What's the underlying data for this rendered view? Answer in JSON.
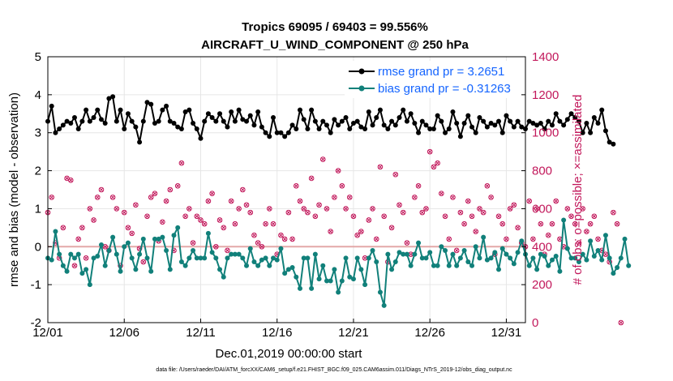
{
  "chart_data": {
    "type": "line",
    "title_line1": "Tropics 69095 / 69403 = 99.556%",
    "title_line2": "AIRCRAFT_U_WIND_COMPONENT @ 250 hPa",
    "xlabel": "Dec.01,2019 00:00:00 start",
    "ylabel_left": "rmse and bias (model - observation)",
    "ylabel_right": "# of obs: o=possible; ×=assimilated",
    "footer": "data file: /Users/raeder/DAI/ATM_forcXX/CAM6_setup/f.e21.FHIST_BGC.f09_025.CAM6assim.011/Diags_NTrS_2019-12/obs_diag_output.nc",
    "x_tick_labels": [
      "12/01",
      "12/06",
      "12/11",
      "12/16",
      "12/21",
      "12/26",
      "12/31"
    ],
    "x_tick_days": [
      0,
      5,
      10,
      15,
      20,
      25,
      30
    ],
    "xlim_days": [
      0,
      31.25
    ],
    "ylim_left": [
      -2,
      5
    ],
    "y_ticks_left": [
      "-2",
      "-1",
      "0",
      "1",
      "2",
      "3",
      "4",
      "5"
    ],
    "ylim_right": [
      0,
      1400
    ],
    "y_ticks_right": [
      "0",
      "200",
      "400",
      "600",
      "800",
      "1000",
      "1200",
      "1400"
    ],
    "points_per_day": 4,
    "series": [
      {
        "name": "rmse grand pr = 3.2651",
        "color": "#000000",
        "values": [
          3.3,
          3.7,
          3.0,
          3.1,
          3.2,
          3.3,
          3.25,
          3.4,
          3.1,
          3.3,
          3.6,
          3.3,
          3.4,
          3.6,
          3.35,
          3.25,
          3.9,
          3.95,
          3.3,
          3.6,
          3.1,
          3.5,
          3.3,
          3.15,
          2.75,
          3.3,
          3.8,
          3.75,
          3.25,
          3.3,
          3.6,
          3.7,
          3.3,
          3.25,
          3.15,
          3.1,
          3.55,
          3.6,
          3.25,
          3.1,
          2.85,
          3.3,
          3.5,
          3.4,
          3.3,
          3.5,
          3.3,
          3.15,
          3.55,
          3.3,
          3.6,
          3.35,
          3.3,
          3.45,
          3.2,
          3.55,
          3.15,
          3.0,
          2.9,
          3.4,
          3.0,
          3.0,
          2.9,
          3.0,
          3.2,
          3.1,
          3.6,
          3.35,
          3.1,
          3.6,
          3.3,
          3.1,
          3.3,
          3.2,
          3.0,
          3.35,
          3.2,
          3.3,
          3.4,
          3.1,
          3.25,
          3.3,
          3.15,
          3.1,
          3.55,
          3.2,
          3.4,
          3.6,
          3.2,
          3.1,
          3.3,
          3.2,
          3.4,
          3.6,
          3.3,
          3.5,
          3.25,
          3.0,
          3.3,
          3.2,
          3.1,
          3.1,
          3.45,
          3.3,
          3.0,
          3.1,
          3.55,
          3.25,
          2.9,
          3.25,
          3.45,
          3.15,
          3.0,
          3.4,
          3.3,
          3.15,
          3.25,
          3.2,
          3.3,
          3.0,
          3.45,
          3.3,
          3.15,
          3.3,
          3.15,
          3.1,
          3.3,
          3.25,
          3.2,
          3.25,
          3.1,
          3.3,
          3.2,
          3.5,
          3.3,
          3.2,
          3.35,
          3.5,
          3.4,
          3.3,
          3.0,
          3.25,
          3.0,
          3.4,
          3.25,
          3.6,
          3.05,
          2.75,
          2.7
        ]
      },
      {
        "name": "bias grand pr = -0.31263",
        "color": "#11807a",
        "values": [
          -0.3,
          -0.35,
          0.4,
          -0.2,
          -0.5,
          -0.65,
          -0.2,
          -0.3,
          -0.2,
          -0.7,
          -0.6,
          -1.0,
          -0.3,
          -0.25,
          0.05,
          -0.5,
          -0.1,
          0.25,
          -0.2,
          -0.65,
          0.0,
          0.1,
          -0.3,
          -0.6,
          -0.2,
          0.2,
          -0.3,
          -0.65,
          0.2,
          0.2,
          0.25,
          -0.1,
          -0.6,
          0.3,
          0.5,
          -0.4,
          -0.5,
          -0.3,
          -0.1,
          -0.3,
          -0.3,
          -0.3,
          0.35,
          -0.15,
          -0.3,
          -0.6,
          -0.8,
          -0.3,
          -0.2,
          -0.2,
          -0.2,
          -0.3,
          -0.5,
          -0.05,
          -0.4,
          -0.5,
          -0.35,
          -0.3,
          -0.5,
          -0.3,
          -0.35,
          -0.05,
          -0.7,
          -0.6,
          -0.55,
          -0.8,
          -1.1,
          -0.3,
          -0.3,
          -1.1,
          -0.2,
          -0.85,
          -0.5,
          -0.9,
          -0.9,
          -0.6,
          -1.2,
          -0.9,
          -0.3,
          -0.8,
          -0.85,
          -0.3,
          -0.6,
          -1.0,
          -0.3,
          -0.1,
          -0.4,
          -1.2,
          -1.55,
          -0.2,
          -0.6,
          -0.4,
          -0.15,
          -0.2,
          -0.2,
          -0.5,
          -0.2,
          0.1,
          -0.3,
          -0.3,
          -0.15,
          -0.5,
          -0.5,
          0.0,
          -0.1,
          -0.5,
          -0.2,
          -0.5,
          -0.3,
          -0.1,
          -0.4,
          -0.5,
          0.0,
          -0.3,
          0.25,
          -0.35,
          -0.3,
          -0.15,
          -0.6,
          -0.05,
          -0.2,
          -0.3,
          -0.45,
          -0.15,
          0.15,
          -0.2,
          -0.5,
          -0.3,
          -0.6,
          -0.2,
          -0.25,
          -0.5,
          -0.35,
          -0.25,
          -0.65,
          0.7,
          -0.05,
          -0.3,
          -0.3,
          -0.4,
          -0.2,
          -0.35,
          0.15,
          -0.25,
          -0.1,
          -0.35,
          0.3,
          -0.3,
          -0.7,
          -0.55,
          -0.3,
          0.2,
          -0.5
        ]
      },
      {
        "name": "obs possible (right axis)",
        "color": "#c2185b",
        "values": [
          580,
          660,
          420,
          340,
          500,
          760,
          750,
          300,
          440,
          500,
          340,
          600,
          540,
          660,
          700,
          400,
          380,
          660,
          600,
          300,
          580,
          500,
          470,
          620,
          390,
          320,
          560,
          660,
          680,
          430,
          530,
          640,
          700,
          380,
          720,
          840,
          560,
          600,
          420,
          560,
          540,
          520,
          640,
          680,
          400,
          540,
          500,
          380,
          640,
          520,
          600,
          700,
          620,
          580,
          460,
          420,
          400,
          520,
          600,
          520,
          360,
          460,
          440,
          580,
          440,
          720,
          640,
          600,
          580,
          760,
          560,
          620,
          860,
          600,
          480,
          660,
          800,
          720,
          600,
          660,
          560,
          460,
          480,
          340,
          540,
          600,
          440,
          820,
          560,
          320,
          500,
          780,
          620,
          580,
          420,
          360,
          660,
          720,
          580,
          600,
          900,
          820,
          840,
          680,
          560,
          440,
          660,
          380,
          580,
          520,
          640,
          560,
          480,
          600,
          580,
          720,
          660,
          360,
          560,
          520,
          440,
          600,
          620,
          500,
          420,
          400,
          640,
          440,
          600,
          520,
          360,
          460,
          520,
          640,
          440,
          400,
          600,
          560,
          520,
          420,
          600,
          480,
          520,
          560,
          440,
          380,
          360,
          320,
          580,
          520,
          0
        ]
      }
    ]
  }
}
